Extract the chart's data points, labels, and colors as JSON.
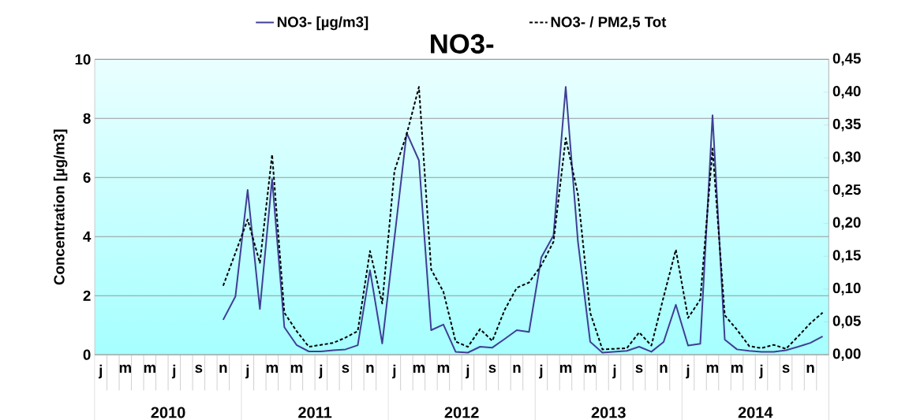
{
  "chart_data": {
    "type": "line",
    "title": "NO3-",
    "ylabel": "Concentration [µg/m3]",
    "categories": [
      "j",
      null,
      "m",
      null,
      "m",
      null,
      "j",
      null,
      "s",
      null,
      "n",
      null,
      "j",
      null,
      "m",
      null,
      "m",
      null,
      "j",
      null,
      "s",
      null,
      "n",
      null,
      "j",
      null,
      "m",
      null,
      "m",
      null,
      "j",
      null,
      "s",
      null,
      "n",
      null,
      "j",
      null,
      "m",
      null,
      "m",
      null,
      "j",
      null,
      "s",
      null,
      "n",
      null,
      "j",
      null,
      "m",
      null,
      "m",
      null,
      "j",
      null,
      "s",
      null,
      "n",
      null
    ],
    "series": [
      {
        "name": "NO3- [µg/m3]",
        "color": "#3f3f94",
        "line_style": "solid",
        "values": [
          null,
          null,
          null,
          null,
          null,
          null,
          null,
          null,
          null,
          null,
          1.18,
          1.97,
          5.58,
          1.55,
          5.95,
          0.93,
          0.33,
          0.11,
          0.11,
          0.15,
          0.18,
          0.32,
          2.86,
          0.38,
          3.95,
          7.51,
          6.58,
          0.83,
          1.02,
          0.1,
          0.07,
          0.27,
          0.24,
          0.53,
          0.83,
          0.77,
          3.29,
          4.04,
          9.07,
          3.82,
          0.44,
          0.07,
          0.1,
          0.13,
          0.27,
          0.1,
          0.43,
          1.69,
          0.31,
          0.37,
          8.11,
          0.51,
          0.18,
          0.13,
          0.1,
          0.1,
          0.15,
          0.27,
          0.4,
          0.62
        ]
      },
      {
        "name": "NO3- / PM2,5 Tot",
        "color": "#000000",
        "line_style": "dashed",
        "axis": "y2",
        "values": [
          null,
          null,
          null,
          null,
          null,
          null,
          null,
          null,
          null,
          null,
          0.105,
          0.155,
          0.206,
          0.14,
          0.305,
          0.064,
          0.036,
          0.012,
          0.015,
          0.018,
          0.026,
          0.036,
          0.158,
          0.078,
          0.28,
          0.336,
          0.408,
          0.13,
          0.096,
          0.02,
          0.012,
          0.039,
          0.021,
          0.068,
          0.102,
          0.11,
          0.136,
          0.172,
          0.33,
          0.244,
          0.064,
          0.008,
          0.009,
          0.01,
          0.034,
          0.014,
          0.088,
          0.16,
          0.056,
          0.084,
          0.314,
          0.06,
          0.038,
          0.013,
          0.01,
          0.015,
          0.009,
          0.028,
          0.048,
          0.064
        ]
      }
    ],
    "ylim": [
      0,
      10
    ],
    "yticks": [
      0,
      2,
      4,
      6,
      8,
      10
    ],
    "y2lim": [
      0,
      0.45
    ],
    "y2ticks": [
      {
        "value": 0,
        "label": "0,00"
      },
      {
        "value": 0.05,
        "label": "0,05"
      },
      {
        "value": 0.1,
        "label": "0,10"
      },
      {
        "value": 0.15,
        "label": "0,15"
      },
      {
        "value": 0.2,
        "label": "0,20"
      },
      {
        "value": 0.25,
        "label": "0,25"
      },
      {
        "value": 0.3,
        "label": "0,30"
      },
      {
        "value": 0.35,
        "label": "0,35"
      },
      {
        "value": 0.4,
        "label": "0,40"
      },
      {
        "value": 0.45,
        "label": "0,45"
      }
    ],
    "annotations": [
      "2010",
      "2011",
      "2012",
      "2013",
      "2014"
    ],
    "grid": "y",
    "legend": "top",
    "marker": "none"
  }
}
